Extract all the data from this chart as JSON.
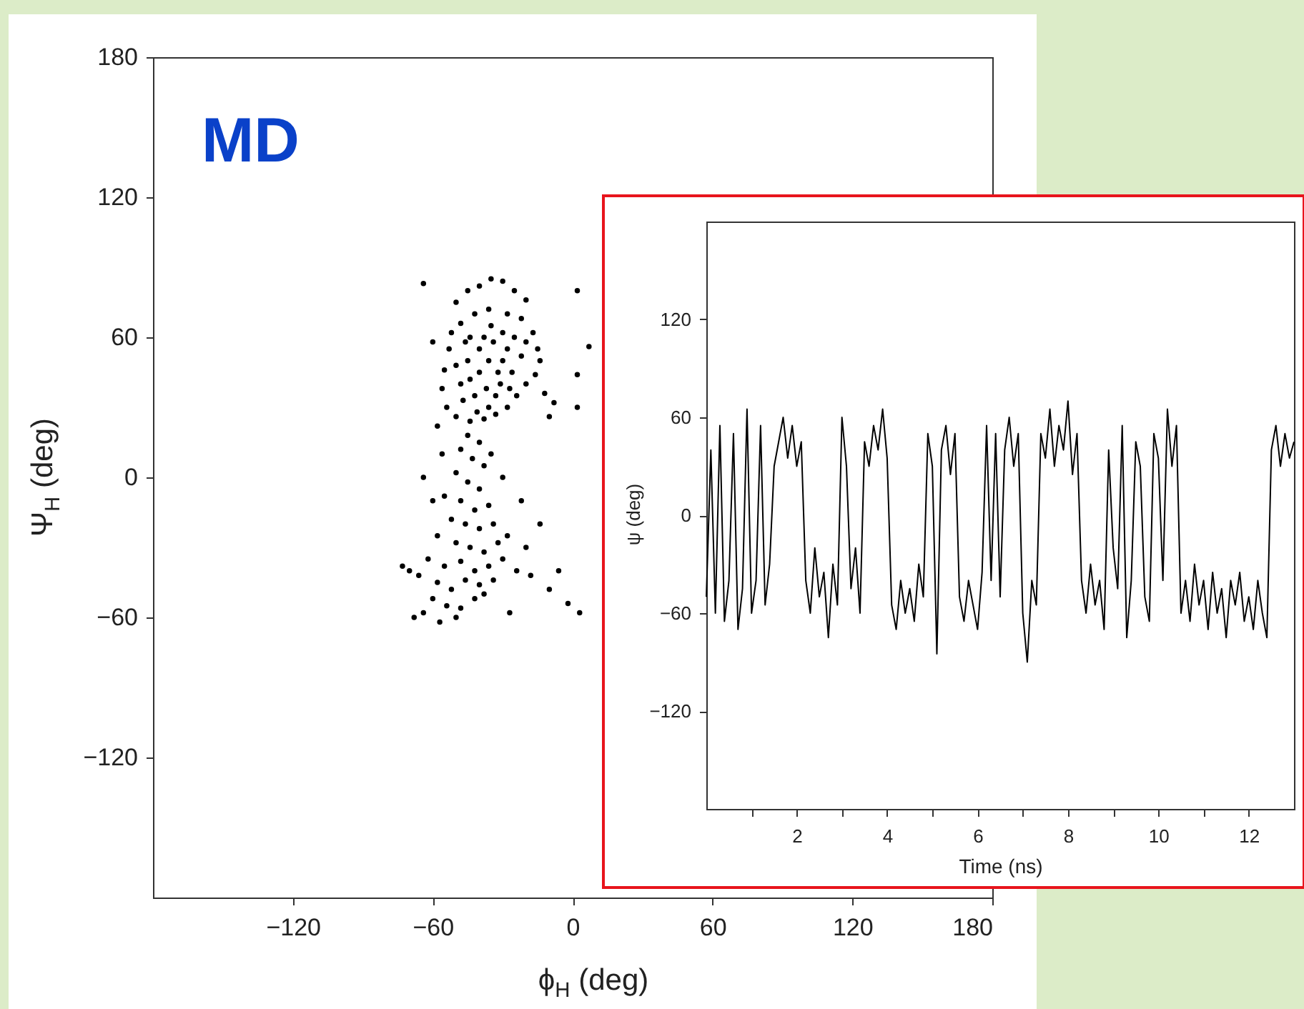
{
  "chart_data": [
    {
      "type": "scatter",
      "annotations": [
        "MD"
      ],
      "xlabel": "ϕ$_{H}$ (deg)",
      "ylabel": "Ψ$_{H}$ (deg)",
      "xlim": [
        -180,
        180
      ],
      "ylim": [
        -180,
        180
      ],
      "xticks": [
        -120,
        -60,
        0,
        60,
        120,
        180
      ],
      "yticks": [
        -120,
        -60,
        0,
        60,
        120,
        180
      ],
      "color": "#000000",
      "marker": "circle",
      "grid": false,
      "x": [
        -50,
        -45,
        -40,
        -35,
        -30,
        -25,
        -20,
        -42,
        -36,
        -28,
        -22,
        -17,
        -15,
        -14,
        -16,
        -20,
        -24,
        -28,
        -33,
        -38,
        -44,
        -50,
        -54,
        -56,
        -55,
        -53,
        -52,
        -48,
        -44,
        -40,
        -36,
        -32,
        -28,
        -25,
        -30,
        -35,
        -40,
        -45,
        -48,
        -42,
        -37,
        -33,
        -26,
        -22,
        -20,
        -38,
        -34,
        -30,
        -46,
        -50,
        -44,
        -27,
        -31,
        -36,
        -41,
        -47,
        -45,
        -40,
        -48,
        -43,
        -38,
        -50,
        -45,
        -40,
        -55,
        -48,
        -42,
        -36,
        -52,
        -46,
        -40,
        -34,
        -58,
        -50,
        -44,
        -38,
        -32,
        -62,
        -55,
        -48,
        -42,
        -36,
        -30,
        -66,
        -58,
        -52,
        -46,
        -40,
        -34,
        -60,
        -54,
        -48,
        -42,
        -70,
        -64,
        -57,
        -50,
        -38,
        -28,
        -24,
        -20,
        -22,
        -30,
        -35,
        -56,
        -60,
        -68,
        -73,
        -64,
        -64,
        -60,
        -58,
        -12,
        -10,
        -8,
        2,
        7,
        2,
        2,
        3,
        -2,
        -10,
        -27,
        -18,
        -14,
        -6
      ],
      "values": [
        75,
        80,
        82,
        85,
        84,
        80,
        76,
        70,
        72,
        70,
        68,
        62,
        55,
        50,
        44,
        40,
        35,
        30,
        27,
        25,
        24,
        26,
        30,
        38,
        46,
        55,
        62,
        66,
        60,
        55,
        50,
        45,
        55,
        60,
        62,
        65,
        45,
        50,
        40,
        35,
        38,
        35,
        45,
        52,
        58,
        60,
        58,
        50,
        58,
        48,
        42,
        38,
        40,
        30,
        28,
        33,
        18,
        15,
        12,
        8,
        5,
        2,
        -2,
        -5,
        -8,
        -10,
        -14,
        -12,
        -18,
        -20,
        -22,
        -20,
        -25,
        -28,
        -30,
        -32,
        -28,
        -35,
        -38,
        -36,
        -40,
        -38,
        -35,
        -42,
        -45,
        -48,
        -44,
        -46,
        -44,
        -52,
        -55,
        -56,
        -52,
        -40,
        -58,
        -62,
        -60,
        -50,
        -25,
        -40,
        -30,
        -10,
        0,
        10,
        10,
        -10,
        -60,
        -38,
        0,
        83,
        58,
        22,
        36,
        26,
        32,
        80,
        56,
        44,
        30,
        -58,
        -54,
        -48,
        -58,
        -42,
        -20,
        -40
      ]
    },
    {
      "type": "line",
      "xlabel": "Time (ns)",
      "ylabel": "ψ (deg)",
      "xlim": [
        0,
        13
      ],
      "ylim": [
        -180,
        180
      ],
      "xticks": [
        {
          "value": 1,
          "label": null
        },
        2,
        {
          "value": 3,
          "label": null
        },
        4,
        {
          "value": 5,
          "label": null
        },
        6,
        {
          "value": 7,
          "label": null
        },
        8,
        {
          "value": 9,
          "label": null
        },
        10,
        {
          "value": 11,
          "label": null
        },
        12
      ],
      "yticks": [
        -120,
        -60,
        0,
        60,
        120
      ],
      "color": "#000000",
      "grid": false,
      "x": [
        0,
        0.1,
        0.2,
        0.3,
        0.4,
        0.5,
        0.6,
        0.7,
        0.8,
        0.9,
        1,
        1.1,
        1.2,
        1.3,
        1.4,
        1.5,
        1.6,
        1.7,
        1.8,
        1.9,
        2,
        2.1,
        2.2,
        2.3,
        2.4,
        2.5,
        2.6,
        2.7,
        2.8,
        2.9,
        3,
        3.1,
        3.2,
        3.3,
        3.4,
        3.5,
        3.6,
        3.7,
        3.8,
        3.9,
        4,
        4.1,
        4.2,
        4.3,
        4.4,
        4.5,
        4.6,
        4.7,
        4.8,
        4.9,
        5,
        5.1,
        5.2,
        5.3,
        5.4,
        5.5,
        5.6,
        5.7,
        5.8,
        5.9,
        6,
        6.1,
        6.2,
        6.3,
        6.4,
        6.5,
        6.6,
        6.7,
        6.8,
        6.9,
        7,
        7.1,
        7.2,
        7.3,
        7.4,
        7.5,
        7.6,
        7.7,
        7.8,
        7.9,
        8,
        8.1,
        8.2,
        8.3,
        8.4,
        8.5,
        8.6,
        8.7,
        8.8,
        8.9,
        9,
        9.1,
        9.2,
        9.3,
        9.4,
        9.5,
        9.6,
        9.7,
        9.8,
        9.9,
        10,
        10.1,
        10.2,
        10.3,
        10.4,
        10.5,
        10.6,
        10.7,
        10.8,
        10.9,
        11,
        11.1,
        11.2,
        11.3,
        11.4,
        11.5,
        11.6,
        11.7,
        11.8,
        11.9,
        12,
        12.1,
        12.2,
        12.3,
        12.4,
        12.5,
        12.6,
        12.7,
        12.8,
        12.9,
        13
      ],
      "values": [
        -50,
        40,
        -60,
        55,
        -65,
        -40,
        50,
        -70,
        -45,
        65,
        -60,
        -40,
        55,
        -55,
        -30,
        30,
        45,
        60,
        35,
        55,
        30,
        45,
        -40,
        -60,
        -20,
        -50,
        -35,
        -75,
        -30,
        -55,
        60,
        30,
        -45,
        -20,
        -60,
        45,
        30,
        55,
        40,
        65,
        35,
        -55,
        -70,
        -40,
        -60,
        -45,
        -65,
        -30,
        -50,
        50,
        30,
        -85,
        40,
        55,
        25,
        50,
        -50,
        -65,
        -40,
        -55,
        -70,
        -35,
        55,
        -40,
        50,
        -50,
        40,
        60,
        30,
        50,
        -60,
        -90,
        -40,
        -55,
        50,
        35,
        65,
        30,
        55,
        40,
        70,
        25,
        50,
        -40,
        -60,
        -30,
        -55,
        -40,
        -70,
        40,
        -20,
        -45,
        55,
        -75,
        -40,
        45,
        30,
        -50,
        -65,
        50,
        35,
        -40,
        65,
        30,
        55,
        -60,
        -40,
        -65,
        -30,
        -55,
        -40,
        -70,
        -35,
        -60,
        -45,
        -75,
        -40,
        -55,
        -35,
        -65,
        -50,
        -70,
        -40,
        -60,
        -75,
        40,
        55,
        30,
        50,
        35,
        45
      ]
    }
  ]
}
